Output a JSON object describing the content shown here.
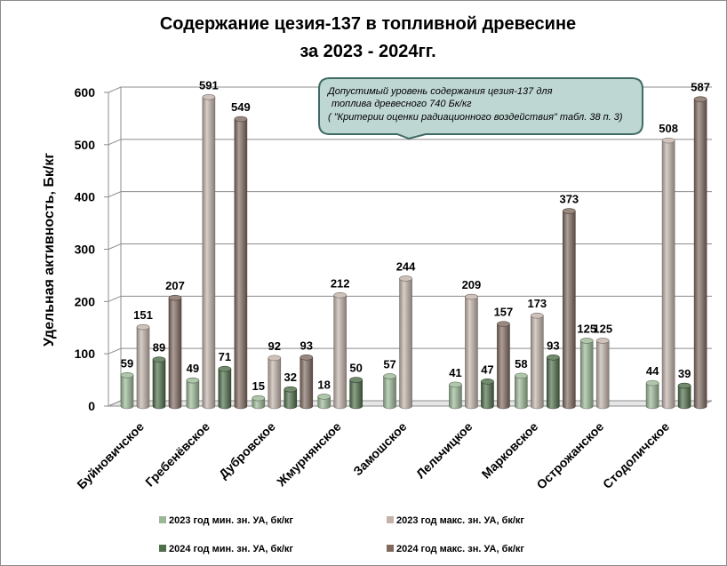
{
  "chart_data": {
    "type": "bar",
    "title": [
      "Содержание цезия-137 в топливной древесине",
      "за 2023 - 2024гг."
    ],
    "ylabel": "Удельная активность, Бк/кг",
    "xlabel": "",
    "ylim": [
      0,
      600
    ],
    "yticks": [
      "0",
      "100",
      "200",
      "300",
      "400",
      "500",
      "600"
    ],
    "grid": true,
    "legend_position": "bottom",
    "categories": [
      "Буйновичское",
      "Гребенёвское",
      "Дубровское",
      "Жмурнянское",
      "Замошское",
      "Лельчицкое",
      "Марковское",
      "Острожанское",
      "Стодоличское"
    ],
    "series": [
      {
        "name": "2023 год мин. зн. УА, бк/кг",
        "color": "#9bb896",
        "values": [
          59,
          49,
          15,
          18,
          57,
          41,
          58,
          125,
          44
        ]
      },
      {
        "name": "2023 год макс.  зн. УА, бк/кг",
        "color": "#c2b3aa",
        "values": [
          151,
          591,
          92,
          212,
          244,
          209,
          173,
          125,
          508
        ]
      },
      {
        "name": "2024 год мин. зн. УА, бк/кг",
        "color": "#4f6e4a",
        "values": [
          89,
          71,
          32,
          50,
          null,
          47,
          93,
          null,
          39
        ]
      },
      {
        "name": "2024 год макс.  зн. УА, бк/кг",
        "color": "#806a60",
        "values": [
          207,
          549,
          93,
          null,
          null,
          157,
          373,
          null,
          587
        ]
      }
    ],
    "annotation": [
      "Допустимый уровень содержания цезия-137 для",
      "топлива древесного 740 Бк/кг",
      "( \"Критерии оценки радиационного воздействия\" табл. 38 п. 3)"
    ]
  }
}
